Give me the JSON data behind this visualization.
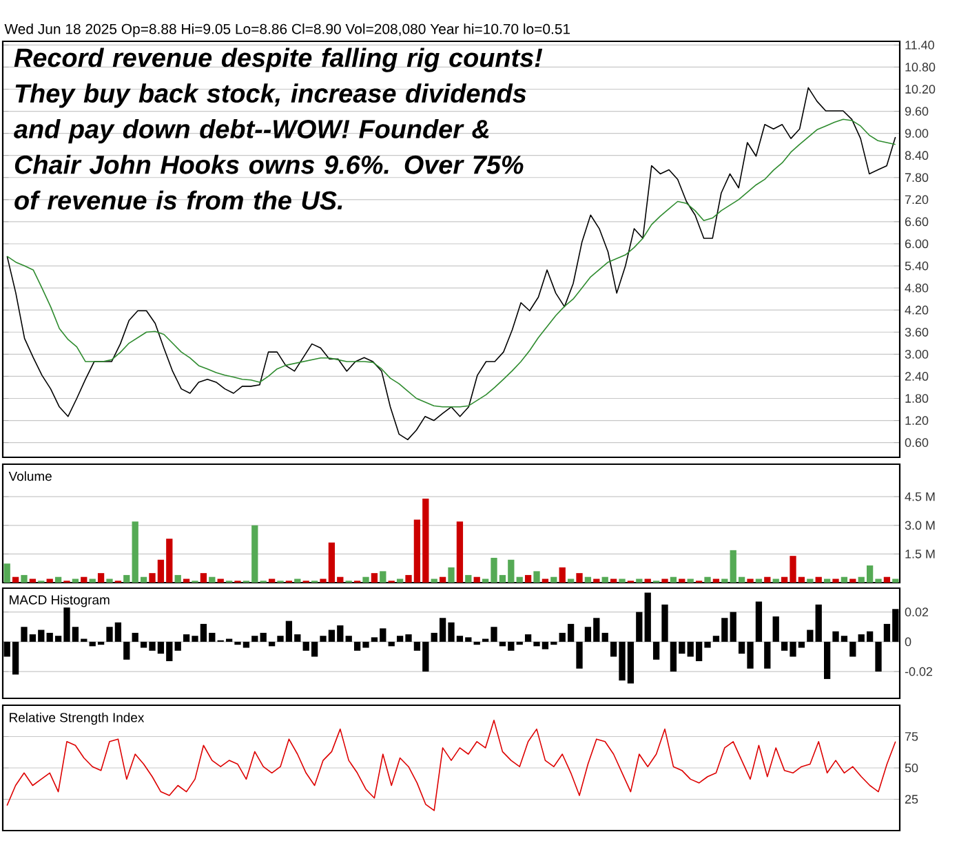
{
  "chart_data": [
    {
      "type": "line",
      "title": "Wed Jun 18 2025  Op=8.88  Hi=9.05  Lo=8.86  Cl=8.90  Vol=208,080  Year hi=10.70  lo=0.51",
      "annotations": [
        "Record revenue despite falling rig counts! They buy back stock, increase dividends and pay down debt--WOW! Founder & Chair John Hooks owns 9.6%. Over 75% of revenue is from the US."
      ],
      "categories": [
        null,
        null,
        null,
        null,
        null,
        null,
        null,
        null,
        null,
        null,
        null,
        null,
        null,
        null,
        null,
        null,
        null,
        null,
        null,
        null,
        null,
        null,
        null,
        null,
        null,
        null,
        null,
        null,
        null,
        null,
        null,
        null,
        null,
        null,
        null,
        null,
        null,
        null,
        null,
        null,
        null,
        null,
        null,
        null,
        null,
        null,
        null,
        null,
        null,
        null,
        null,
        null,
        null,
        null,
        null,
        null,
        null,
        null,
        null,
        null,
        null,
        null,
        null,
        null,
        null,
        null,
        null,
        null,
        null,
        null,
        null,
        null,
        null,
        null,
        null,
        null,
        null,
        null,
        null,
        null,
        null,
        null,
        null,
        null,
        null,
        null,
        null,
        null,
        null,
        null,
        null,
        null,
        null,
        null,
        null,
        null,
        null,
        null,
        null,
        null,
        null,
        null,
        null
      ],
      "series": [
        {
          "color": "#000000",
          "values": [
            5.66,
            4.66,
            3.43,
            2.91,
            2.43,
            2.06,
            1.57,
            1.31,
            1.8,
            2.32,
            2.8,
            2.8,
            2.8,
            3.28,
            3.92,
            4.18,
            4.18,
            3.84,
            3.17,
            2.54,
            2.06,
            1.94,
            2.24,
            2.32,
            2.24,
            2.06,
            1.94,
            2.13,
            2.13,
            2.17,
            3.06,
            3.06,
            2.69,
            2.54,
            2.91,
            3.28,
            3.17,
            2.87,
            2.87,
            2.54,
            2.8,
            2.91,
            2.8,
            2.54,
            1.57,
            0.83,
            0.68,
            0.94,
            1.31,
            1.2,
            1.39,
            1.57,
            1.31,
            1.57,
            2.43,
            2.8,
            2.8,
            3.06,
            3.66,
            4.4,
            4.18,
            4.55,
            5.29,
            4.66,
            4.29,
            4.92,
            6.04,
            6.78,
            6.41,
            5.78,
            4.66,
            5.4,
            6.41,
            6.15,
            8.12,
            7.9,
            8.01,
            7.75,
            7.15,
            6.78,
            6.15,
            6.15,
            7.38,
            7.9,
            7.52,
            8.75,
            8.38,
            9.24,
            9.12,
            9.24,
            8.86,
            9.12,
            10.24,
            9.87,
            9.61,
            9.61,
            9.61,
            9.38,
            8.86,
            7.9,
            8.01,
            8.12,
            8.9
          ]
        },
        {
          "color": "#2e8b2e",
          "values": [
            5.66,
            5.5,
            5.4,
            5.29,
            4.8,
            4.29,
            3.7,
            3.4,
            3.2,
            2.8,
            2.8,
            2.8,
            2.85,
            3.05,
            3.3,
            3.45,
            3.6,
            3.62,
            3.54,
            3.3,
            3.06,
            2.9,
            2.69,
            2.6,
            2.5,
            2.43,
            2.38,
            2.32,
            2.3,
            2.24,
            2.4,
            2.6,
            2.7,
            2.75,
            2.8,
            2.85,
            2.9,
            2.9,
            2.85,
            2.8,
            2.8,
            2.8,
            2.78,
            2.6,
            2.35,
            2.2,
            2.0,
            1.8,
            1.7,
            1.6,
            1.57,
            1.57,
            1.57,
            1.6,
            1.75,
            1.9,
            2.1,
            2.32,
            2.55,
            2.8,
            3.1,
            3.45,
            3.75,
            4.05,
            4.3,
            4.5,
            4.8,
            5.1,
            5.3,
            5.5,
            5.6,
            5.7,
            5.9,
            6.15,
            6.52,
            6.75,
            6.95,
            7.15,
            7.1,
            6.9,
            6.63,
            6.7,
            6.9,
            7.05,
            7.2,
            7.4,
            7.6,
            7.75,
            8.0,
            8.2,
            8.49,
            8.7,
            8.9,
            9.1,
            9.2,
            9.3,
            9.38,
            9.35,
            9.2,
            8.95,
            8.8,
            8.75,
            8.7
          ]
        }
      ],
      "ylim": [
        0.2,
        11.5
      ],
      "yticks": [
        {
          "value": 0.6,
          "label": "0.60"
        },
        {
          "value": 1.2,
          "label": "1.20"
        },
        {
          "value": 1.8,
          "label": "1.80"
        },
        {
          "value": 2.4,
          "label": "2.40"
        },
        {
          "value": 3.0,
          "label": "3.00"
        },
        {
          "value": 3.6,
          "label": "3.60"
        },
        {
          "value": 4.2,
          "label": "4.20"
        },
        {
          "value": 4.8,
          "label": "4.80"
        },
        {
          "value": 5.4,
          "label": "5.40"
        },
        {
          "value": 6.0,
          "label": "6.00"
        },
        {
          "value": 6.6,
          "label": "6.60"
        },
        {
          "value": 7.2,
          "label": "7.20"
        },
        {
          "value": 7.8,
          "label": "7.80"
        },
        {
          "value": 8.4,
          "label": "8.40"
        },
        {
          "value": 9.0,
          "label": "9.00"
        },
        {
          "value": 9.6,
          "label": "9.60"
        },
        {
          "value": 10.2,
          "label": "10.20"
        },
        {
          "value": 10.8,
          "label": "10.80"
        },
        {
          "value": 11.4,
          "label": "11.40"
        }
      ],
      "grid": "y",
      "tick_labels": "y"
    },
    {
      "type": "bar",
      "title": "Volume",
      "categories": [
        null,
        null,
        null,
        null,
        null,
        null,
        null,
        null,
        null,
        null,
        null,
        null,
        null,
        null,
        null,
        null,
        null,
        null,
        null,
        null,
        null,
        null,
        null,
        null,
        null,
        null,
        null,
        null,
        null,
        null,
        null,
        null,
        null,
        null,
        null,
        null,
        null,
        null,
        null,
        null,
        null,
        null,
        null,
        null,
        null,
        null,
        null,
        null,
        null,
        null,
        null,
        null,
        null,
        null,
        null,
        null,
        null,
        null,
        null,
        null,
        null,
        null,
        null,
        null,
        null,
        null,
        null,
        null,
        null,
        null,
        null,
        null,
        null,
        null,
        null,
        null,
        null,
        null,
        null,
        null,
        null,
        null,
        null,
        null,
        null,
        null,
        null,
        null,
        null,
        null,
        null,
        null,
        null,
        null,
        null,
        null,
        null,
        null,
        null,
        null,
        null,
        null,
        null,
        null,
        null
      ],
      "values": [
        1.0,
        0.3,
        0.4,
        0.2,
        0.1,
        0.2,
        0.3,
        0.1,
        0.2,
        0.3,
        0.2,
        0.5,
        0.2,
        0.1,
        0.4,
        3.2,
        0.3,
        0.5,
        1.2,
        2.3,
        0.4,
        0.2,
        0.1,
        0.5,
        0.3,
        0.2,
        0.1,
        0.1,
        0.1,
        3.0,
        0.1,
        0.2,
        0.1,
        0.1,
        0.2,
        0.1,
        0.1,
        0.2,
        2.1,
        0.3,
        0.1,
        0.1,
        0.3,
        0.5,
        0.6,
        0.1,
        0.2,
        0.4,
        3.3,
        4.4,
        0.2,
        0.3,
        0.8,
        3.2,
        0.4,
        0.3,
        0.2,
        1.3,
        0.4,
        1.2,
        0.3,
        0.4,
        0.6,
        0.2,
        0.3,
        0.8,
        0.2,
        0.5,
        0.3,
        0.2,
        0.3,
        0.2,
        0.2,
        0.1,
        0.2,
        0.2,
        0.1,
        0.2,
        0.3,
        0.2,
        0.2,
        0.1,
        0.3,
        0.2,
        0.2,
        1.7,
        0.3,
        0.2,
        0.2,
        0.3,
        0.2,
        0.3,
        1.4,
        0.3,
        0.2,
        0.3,
        0.2,
        0.2,
        0.3,
        0.2,
        0.3,
        0.9,
        0.2,
        0.3,
        0.2
      ],
      "colors": [
        "#55aa55",
        "#cc0000",
        "#55aa55",
        "#cc0000",
        "#55aa55",
        "#cc0000",
        "#55aa55",
        "#cc0000",
        "#55aa55",
        "#cc0000",
        "#55aa55",
        "#cc0000",
        "#55aa55",
        "#cc0000",
        "#55aa55",
        "#55aa55",
        "#55aa55",
        "#cc0000",
        "#cc0000",
        "#cc0000",
        "#55aa55",
        "#cc0000",
        "#55aa55",
        "#cc0000",
        "#55aa55",
        "#cc0000",
        "#55aa55",
        "#cc0000",
        "#55aa55",
        "#55aa55",
        "#55aa55",
        "#cc0000",
        "#55aa55",
        "#cc0000",
        "#55aa55",
        "#cc0000",
        "#55aa55",
        "#cc0000",
        "#cc0000",
        "#cc0000",
        "#55aa55",
        "#cc0000",
        "#55aa55",
        "#cc0000",
        "#55aa55",
        "#cc0000",
        "#55aa55",
        "#cc0000",
        "#cc0000",
        "#cc0000",
        "#55aa55",
        "#cc0000",
        "#55aa55",
        "#cc0000",
        "#55aa55",
        "#cc0000",
        "#55aa55",
        "#55aa55",
        "#55aa55",
        "#55aa55",
        "#55aa55",
        "#cc0000",
        "#55aa55",
        "#cc0000",
        "#55aa55",
        "#cc0000",
        "#55aa55",
        "#cc0000",
        "#55aa55",
        "#cc0000",
        "#55aa55",
        "#cc0000",
        "#55aa55",
        "#cc0000",
        "#55aa55",
        "#cc0000",
        "#55aa55",
        "#cc0000",
        "#55aa55",
        "#cc0000",
        "#55aa55",
        "#cc0000",
        "#55aa55",
        "#cc0000",
        "#55aa55",
        "#55aa55",
        "#55aa55",
        "#cc0000",
        "#55aa55",
        "#cc0000",
        "#55aa55",
        "#cc0000",
        "#cc0000",
        "#cc0000",
        "#55aa55",
        "#cc0000",
        "#55aa55",
        "#cc0000",
        "#55aa55",
        "#cc0000",
        "#55aa55",
        "#55aa55",
        "#55aa55",
        "#cc0000",
        "#55aa55"
      ],
      "ylim": [
        0,
        6.2
      ],
      "yticks": [
        {
          "value": 1.5,
          "label": "1.5 M"
        },
        {
          "value": 3.0,
          "label": "3.0 M"
        },
        {
          "value": 4.5,
          "label": "4.5 M"
        }
      ],
      "grid": "y",
      "tick_labels": "y"
    },
    {
      "type": "bar",
      "title": "MACD Histogram",
      "categories": [
        null,
        null,
        null,
        null,
        null,
        null,
        null,
        null,
        null,
        null,
        null,
        null,
        null,
        null,
        null,
        null,
        null,
        null,
        null,
        null,
        null,
        null,
        null,
        null,
        null,
        null,
        null,
        null,
        null,
        null,
        null,
        null,
        null,
        null,
        null,
        null,
        null,
        null,
        null,
        null,
        null,
        null,
        null,
        null,
        null,
        null,
        null,
        null,
        null,
        null,
        null,
        null,
        null,
        null,
        null,
        null,
        null,
        null,
        null,
        null,
        null,
        null,
        null,
        null,
        null,
        null,
        null,
        null,
        null,
        null,
        null,
        null,
        null,
        null,
        null,
        null,
        null,
        null,
        null,
        null,
        null,
        null,
        null,
        null,
        null,
        null,
        null,
        null,
        null,
        null,
        null,
        null,
        null,
        null,
        null,
        null,
        null,
        null,
        null,
        null,
        null,
        null,
        null,
        null,
        null
      ],
      "color": "#000000",
      "values": [
        -0.01,
        -0.022,
        0.01,
        0.005,
        0.008,
        0.006,
        0.004,
        0.023,
        0.01,
        0.002,
        -0.003,
        -0.002,
        0.01,
        0.013,
        -0.012,
        0.006,
        -0.004,
        -0.006,
        -0.008,
        -0.013,
        -0.006,
        0.005,
        0.004,
        0.012,
        0.006,
        0.001,
        0.002,
        -0.002,
        -0.004,
        0.004,
        0.006,
        -0.003,
        0.004,
        0.014,
        0.005,
        -0.006,
        -0.01,
        0.004,
        0.008,
        0.011,
        0.004,
        -0.006,
        -0.004,
        0.003,
        0.009,
        -0.003,
        0.004,
        0.005,
        -0.006,
        -0.02,
        0.006,
        0.016,
        0.013,
        0.004,
        0.003,
        -0.002,
        0.002,
        0.01,
        -0.003,
        -0.006,
        -0.002,
        0.005,
        -0.003,
        -0.005,
        -0.002,
        0.006,
        0.012,
        -0.018,
        0.01,
        0.016,
        0.006,
        -0.01,
        -0.026,
        -0.028,
        0.02,
        0.033,
        -0.012,
        0.025,
        -0.02,
        -0.008,
        -0.01,
        -0.013,
        -0.004,
        0.004,
        0.016,
        0.02,
        -0.008,
        -0.018,
        0.027,
        -0.018,
        0.017,
        -0.006,
        -0.01,
        -0.004,
        0.008,
        0.025,
        -0.025,
        0.007,
        0.004,
        -0.01,
        0.005,
        0.007,
        -0.02,
        0.012,
        0.022
      ],
      "ylim": [
        -0.038,
        0.036
      ],
      "yticks": [
        -0.02,
        0,
        0.02
      ],
      "grid": "y",
      "tick_labels": "y"
    },
    {
      "type": "line",
      "title": "Relative Strength Index",
      "categories": [
        null,
        null,
        null,
        null,
        null,
        null,
        null,
        null,
        null,
        null,
        null,
        null,
        null,
        null,
        null,
        null,
        null,
        null,
        null,
        null,
        null,
        null,
        null,
        null,
        null,
        null,
        null,
        null,
        null,
        null,
        null,
        null,
        null,
        null,
        null,
        null,
        null,
        null,
        null,
        null,
        null,
        null,
        null,
        null,
        null,
        null,
        null,
        null,
        null,
        null,
        null,
        null,
        null,
        null,
        null,
        null,
        null,
        null,
        null,
        null,
        null,
        null,
        null,
        null,
        null,
        null,
        null,
        null,
        null,
        null,
        null,
        null,
        null,
        null,
        null,
        null,
        null,
        null,
        null,
        null,
        null,
        null,
        null,
        null,
        null,
        null,
        null,
        null,
        null,
        null,
        null,
        null,
        null,
        null,
        null,
        null,
        null,
        null,
        null,
        null,
        null,
        null,
        null,
        null,
        null
      ],
      "series": [
        {
          "color": "#dd0000",
          "values": [
            20,
            36,
            46,
            36,
            41,
            46,
            31,
            71,
            68,
            58,
            51,
            48,
            71,
            73,
            41,
            61,
            53,
            43,
            31,
            28,
            36,
            31,
            41,
            68,
            56,
            51,
            56,
            53,
            41,
            63,
            51,
            46,
            51,
            73,
            61,
            46,
            36,
            56,
            63,
            81,
            56,
            46,
            33,
            26,
            61,
            36,
            58,
            51,
            38,
            21,
            16,
            66,
            56,
            66,
            61,
            71,
            66,
            88,
            63,
            56,
            51,
            71,
            81,
            56,
            51,
            61,
            46,
            28,
            53,
            73,
            71,
            61,
            46,
            31,
            61,
            51,
            61,
            81,
            51,
            48,
            41,
            38,
            43,
            46,
            66,
            71,
            56,
            41,
            68,
            43,
            66,
            48,
            46,
            51,
            53,
            71,
            46,
            56,
            46,
            51,
            43,
            36,
            31,
            53,
            71
          ]
        }
      ],
      "ylim": [
        0,
        100
      ],
      "yticks": [
        25,
        50,
        75
      ],
      "grid": "y",
      "tick_labels": "y"
    }
  ]
}
